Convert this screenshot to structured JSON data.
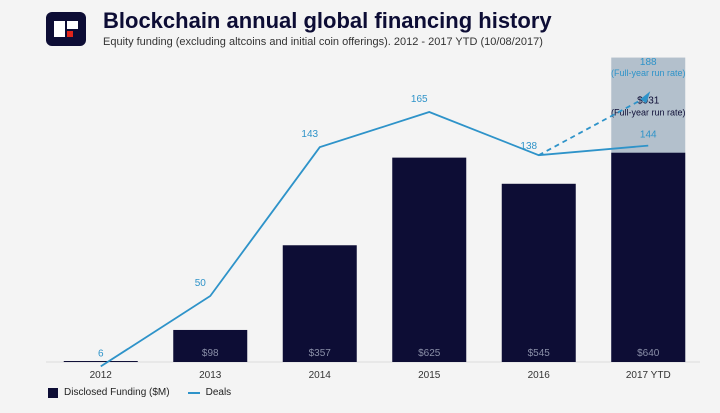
{
  "header": {
    "title": "Blockchain annual global financing history",
    "subtitle": "Equity funding (excluding altcoins and initial coin offerings). 2012 - 2017 YTD (10/08/2017)"
  },
  "colors": {
    "bar": "#0d0d35",
    "line": "#2e93c9",
    "projection_bar": "#b3c0cc",
    "bar_label": "#8a8fa8",
    "logo": "#0d0d35",
    "logo_accent": "#e1251b"
  },
  "chart_data": {
    "type": "bar",
    "categories": [
      "2012",
      "2013",
      "2014",
      "2015",
      "2016",
      "2017 YTD"
    ],
    "series": [
      {
        "name": "Disclosed Funding ($M)",
        "type": "bar",
        "values": [
          3,
          98,
          357,
          625,
          545,
          640
        ],
        "labels": [
          "",
          "$98",
          "$357",
          "$625",
          "$545",
          "$640"
        ]
      },
      {
        "name": "Deals",
        "type": "line",
        "values": [
          6,
          50,
          143,
          165,
          138,
          144
        ],
        "labels": [
          "6",
          "50",
          "143",
          "165",
          "138",
          "144"
        ]
      }
    ],
    "projection": {
      "funding_value": 931,
      "funding_label": "$931",
      "funding_note": "(Full-year run rate)",
      "deals_value": 188,
      "deals_label": "188",
      "deals_note": "(Full-year run rate)"
    },
    "legend": [
      "Disclosed Funding ($M)",
      "Deals"
    ],
    "legend_position": "bottom-left",
    "grid": false
  }
}
